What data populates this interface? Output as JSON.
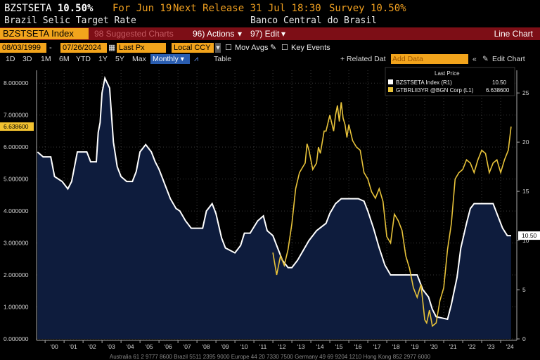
{
  "header": {
    "ticker": "BZSTSETA",
    "value": "10.50%",
    "as_of": "For Jun 19",
    "next_release": "Next Release 31 Jul 18:30",
    "survey": "Survey 10.50%",
    "description": "Brazil Selic Target Rate",
    "source": "Banco Central do Brasil"
  },
  "toolbar": {
    "security": "BZSTSETA Index",
    "suggested": "98 Suggested Charts",
    "actions": "96) Actions",
    "edit": "97) Edit",
    "chart_type": "Line Chart"
  },
  "date_bar": {
    "start": "08/03/1999",
    "end": "07/26/2024",
    "field": "Last Px",
    "currency": "Local CCY",
    "mov_avgs": "Mov Avgs",
    "key_events": "Key Events"
  },
  "period_bar": {
    "periods": [
      "1D",
      "3D",
      "1M",
      "6M",
      "YTD",
      "1Y",
      "5Y",
      "Max"
    ],
    "frequency": "Monthly",
    "table": "Table",
    "related": "+ Related Dat",
    "add_data": "Add Data",
    "edit_chart": "Edit Chart"
  },
  "legend": {
    "title": "Last Price",
    "items": [
      {
        "name": "BZSTSETA Index  (R1)",
        "value": "10.50",
        "color": "#ffffff"
      },
      {
        "name": "GTBRLII3YR @BGN Corp  (L1)",
        "value": "6.638600",
        "color": "#e8c33a"
      }
    ]
  },
  "footer": "Australia 61 2 9777 8600 Brazil 5511 2395 9000 Europe 44 20 7330 7500 Germany 49 69 9204 1210 Hong Kong 852 2977 6000",
  "chart_data": {
    "type": "line",
    "x_labels": [
      "'00",
      "'01",
      "'02",
      "'03",
      "'04",
      "'05",
      "'06",
      "'07",
      "'08",
      "'09",
      "'10",
      "'11",
      "'12",
      "'13",
      "'14",
      "'15",
      "'16",
      "'17",
      "'18",
      "'19",
      "'20",
      "'21",
      "'22",
      "'23",
      "'24"
    ],
    "left_axis": {
      "ticks": [
        "0.000000",
        "1.000000",
        "2.000000",
        "3.000000",
        "4.000000",
        "5.000000",
        "6.000000",
        "7.000000",
        "8.000000"
      ],
      "ylim": [
        0,
        8.4
      ],
      "last_value_label": "6.638600"
    },
    "right_axis": {
      "ticks": [
        "0",
        "5",
        "10",
        "15",
        "20",
        "25"
      ],
      "ylim": [
        0,
        27.3
      ],
      "last_value_label": "10.50"
    },
    "series": [
      {
        "name": "BZSTSETA Index (R1)",
        "axis": "right",
        "color": "#ffffff",
        "fill": "#0e1c3d",
        "x": [
          1999.6,
          1999.9,
          2000.3,
          2000.5,
          2000.9,
          2001.2,
          2001.4,
          2001.7,
          2002.2,
          2002.4,
          2002.7,
          2002.8,
          2002.9,
          2003.0,
          2003.15,
          2003.4,
          2003.6,
          2003.8,
          2004.0,
          2004.3,
          2004.6,
          2004.8,
          2005.0,
          2005.3,
          2005.6,
          2005.8,
          2006.0,
          2006.3,
          2006.6,
          2006.9,
          2007.1,
          2007.4,
          2007.7,
          2008.3,
          2008.5,
          2008.8,
          2009.0,
          2009.3,
          2009.5,
          2010.0,
          2010.3,
          2010.5,
          2010.8,
          2011.2,
          2011.5,
          2011.7,
          2012.0,
          2012.3,
          2012.5,
          2012.8,
          2013.0,
          2013.3,
          2013.6,
          2013.9,
          2014.3,
          2014.8,
          2015.0,
          2015.3,
          2015.6,
          2016.5,
          2016.8,
          2017.0,
          2017.3,
          2017.6,
          2017.9,
          2018.2,
          2019.6,
          2019.9,
          2020.2,
          2020.4,
          2020.6,
          2021.2,
          2021.4,
          2021.7,
          2021.9,
          2022.2,
          2022.4,
          2022.6,
          2023.6,
          2023.9,
          2024.1,
          2024.35,
          2024.55
        ],
        "y": [
          19.0,
          18.5,
          18.5,
          16.5,
          16.0,
          15.25,
          16.0,
          19.0,
          19.0,
          18.0,
          18.0,
          21.0,
          22.0,
          25.0,
          26.5,
          25.5,
          20.0,
          17.5,
          16.5,
          16.0,
          16.0,
          17.0,
          19.0,
          19.75,
          19.0,
          18.0,
          17.25,
          15.75,
          14.25,
          13.25,
          13.0,
          12.0,
          11.25,
          11.25,
          13.0,
          13.75,
          12.75,
          10.25,
          9.25,
          8.75,
          9.5,
          10.75,
          10.75,
          12.0,
          12.5,
          11.0,
          10.5,
          9.0,
          8.0,
          7.25,
          7.25,
          8.0,
          9.0,
          10.0,
          11.0,
          11.75,
          12.75,
          13.75,
          14.25,
          14.25,
          14.0,
          13.0,
          11.25,
          9.25,
          7.5,
          6.5,
          6.5,
          5.0,
          4.25,
          3.0,
          2.25,
          2.0,
          3.5,
          6.25,
          9.25,
          11.75,
          13.25,
          13.75,
          13.75,
          12.25,
          11.25,
          10.5,
          10.5
        ]
      },
      {
        "name": "GTBRLII3YR @BGN Corp (L1)",
        "axis": "left",
        "color": "#e8c33a",
        "x": [
          2012.0,
          2012.2,
          2012.4,
          2012.6,
          2012.8,
          2013.0,
          2013.2,
          2013.4,
          2013.6,
          2013.7,
          2013.8,
          2013.9,
          2014.1,
          2014.3,
          2014.4,
          2014.5,
          2014.7,
          2014.8,
          2015.0,
          2015.2,
          2015.3,
          2015.4,
          2015.5,
          2015.6,
          2015.7,
          2015.8,
          2015.9,
          2016.0,
          2016.2,
          2016.4,
          2016.6,
          2016.8,
          2017.0,
          2017.2,
          2017.4,
          2017.6,
          2017.8,
          2018.0,
          2018.2,
          2018.4,
          2018.6,
          2018.8,
          2019.0,
          2019.2,
          2019.4,
          2019.6,
          2019.8,
          2020.0,
          2020.1,
          2020.25,
          2020.4,
          2020.6,
          2020.8,
          2021.0,
          2021.2,
          2021.4,
          2021.6,
          2021.8,
          2022.0,
          2022.2,
          2022.4,
          2022.6,
          2022.8,
          2023.0,
          2023.2,
          2023.4,
          2023.6,
          2023.8,
          2024.0,
          2024.2,
          2024.4,
          2024.55
        ],
        "y": [
          2.7,
          2.0,
          2.6,
          2.3,
          2.8,
          3.6,
          4.7,
          5.2,
          5.4,
          5.5,
          6.1,
          5.9,
          5.3,
          5.5,
          6.0,
          5.8,
          6.5,
          6.5,
          7.0,
          6.5,
          7.0,
          7.3,
          6.8,
          7.4,
          6.9,
          6.7,
          6.3,
          6.7,
          6.2,
          6.0,
          5.9,
          5.2,
          5.0,
          4.6,
          4.4,
          4.7,
          4.3,
          3.2,
          3.0,
          3.9,
          3.7,
          3.4,
          2.6,
          2.2,
          1.6,
          1.3,
          1.7,
          0.6,
          0.5,
          0.9,
          0.4,
          0.5,
          1.2,
          1.6,
          2.8,
          3.6,
          5.0,
          5.2,
          5.3,
          5.6,
          5.5,
          5.2,
          5.6,
          5.9,
          5.8,
          5.2,
          5.5,
          5.6,
          5.2,
          5.6,
          5.9,
          6.64
        ]
      }
    ]
  }
}
